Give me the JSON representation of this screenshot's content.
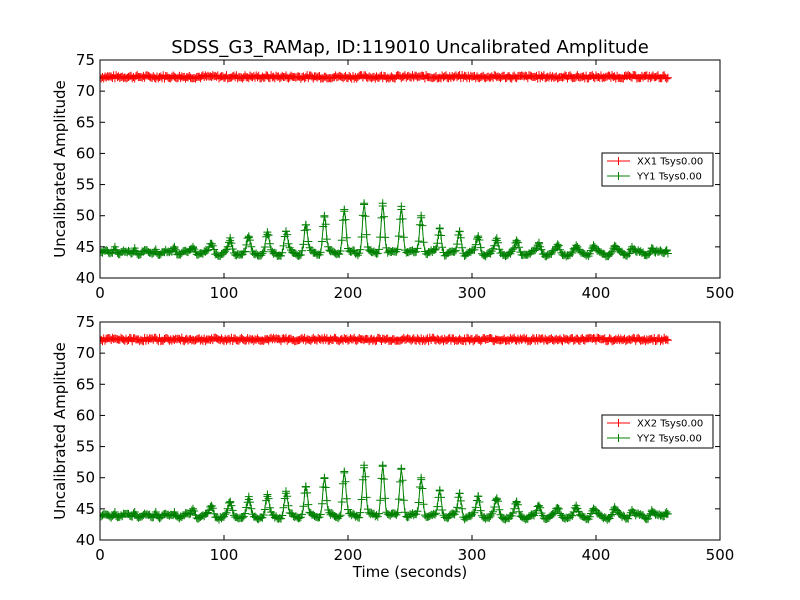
{
  "figure": {
    "title": "SDSS_G3_RAMap, ID:119010 Uncalibrated Amplitude"
  },
  "chart_data": [
    {
      "type": "line",
      "title": "SDSS_G3_RAMap, ID:119010 Uncalibrated Amplitude",
      "xlabel": "",
      "ylabel": "Uncalibrated Amplitude",
      "xlim": [
        0,
        500
      ],
      "ylim": [
        40,
        75
      ],
      "xticks": [
        "0",
        "100",
        "200",
        "300",
        "400",
        "500"
      ],
      "yticks": [
        "40",
        "45",
        "50",
        "55",
        "60",
        "65",
        "70",
        "75"
      ],
      "grid": false,
      "legend_position": "center-right",
      "marker": "plus",
      "x_range": [
        0,
        458
      ],
      "baseline": {
        "XX1 Tsys0.00": 72.3,
        "YY1 Tsys0.00": 44.0
      },
      "series": [
        {
          "name": "XX1 Tsys0.00",
          "color": "#ff0000",
          "x": [
            0,
            50,
            100,
            150,
            200,
            250,
            300,
            350,
            400,
            458
          ],
          "values": [
            72.3,
            72.3,
            72.3,
            72.3,
            72.2,
            72.2,
            72.2,
            72.3,
            72.3,
            72.3
          ]
        },
        {
          "name": "YY1 Tsys0.00",
          "color": "#008000",
          "x": [
            12,
            28,
            45,
            60,
            75,
            90,
            105,
            120,
            135,
            150,
            166,
            181,
            197,
            213,
            228,
            243,
            259,
            274,
            290,
            305,
            320,
            336,
            354,
            369,
            384,
            398,
            415,
            429,
            445,
            457
          ],
          "values": [
            45.0,
            44.8,
            44.6,
            45.0,
            45.0,
            45.5,
            46.0,
            46.5,
            47.0,
            47.5,
            48.5,
            50.0,
            51.0,
            52.0,
            52.0,
            51.5,
            50.0,
            48.0,
            47.5,
            46.5,
            46.0,
            45.8,
            45.5,
            45.0,
            44.8,
            45.0,
            45.0,
            45.0,
            44.8,
            44.5
          ]
        }
      ]
    },
    {
      "type": "line",
      "title": "",
      "xlabel": "Time (seconds)",
      "ylabel": "Uncalibrated Amplitude",
      "xlim": [
        0,
        500
      ],
      "ylim": [
        40,
        75
      ],
      "xticks": [
        "0",
        "100",
        "200",
        "300",
        "400",
        "500"
      ],
      "yticks": [
        "40",
        "45",
        "50",
        "55",
        "60",
        "65",
        "70",
        "75"
      ],
      "grid": false,
      "legend_position": "center-right",
      "marker": "plus",
      "x_range": [
        0,
        458
      ],
      "baseline": {
        "XX2 Tsys0.00": 72.2,
        "YY2 Tsys0.00": 43.8
      },
      "series": [
        {
          "name": "XX2 Tsys0.00",
          "color": "#ff0000",
          "x": [
            0,
            50,
            100,
            150,
            200,
            250,
            300,
            350,
            400,
            458
          ],
          "values": [
            72.2,
            72.2,
            72.3,
            72.2,
            72.1,
            72.2,
            72.2,
            72.2,
            72.2,
            72.2
          ]
        },
        {
          "name": "YY2 Tsys0.00",
          "color": "#008000",
          "x": [
            12,
            28,
            45,
            60,
            75,
            90,
            105,
            120,
            135,
            150,
            166,
            181,
            197,
            213,
            228,
            243,
            259,
            274,
            290,
            305,
            320,
            336,
            354,
            369,
            384,
            398,
            415,
            429,
            445,
            457
          ],
          "values": [
            44.5,
            44.5,
            44.5,
            44.5,
            45.0,
            45.5,
            46.0,
            46.5,
            47.0,
            47.5,
            48.5,
            50.0,
            51.0,
            52.0,
            52.0,
            51.5,
            50.0,
            48.0,
            47.5,
            47.0,
            46.5,
            46.0,
            45.5,
            45.0,
            45.0,
            45.0,
            45.0,
            44.8,
            44.8,
            44.5
          ]
        }
      ]
    }
  ]
}
